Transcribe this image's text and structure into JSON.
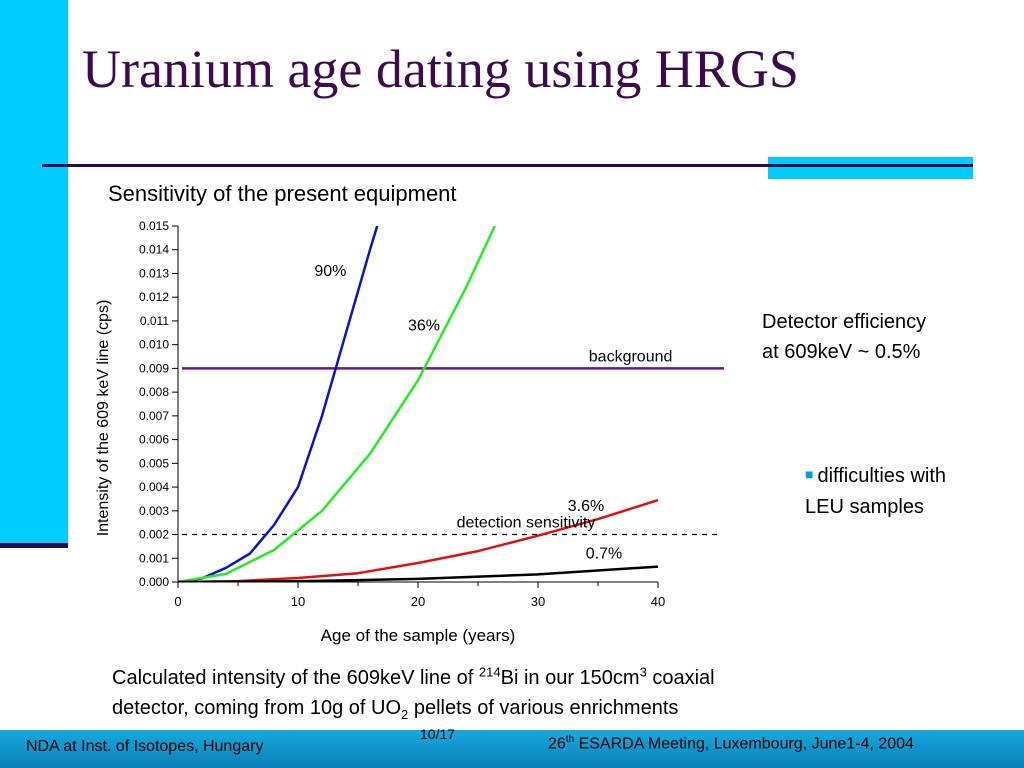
{
  "slide": {
    "title": "Uranium age dating using HRGS",
    "subtitle": "Sensitivity of the present equipment",
    "detector_note_line1": "Detector efficiency",
    "detector_note_line2": "at 609keV ~ 0.5%",
    "difficulties_line1": "difficulties with",
    "difficulties_line2": "LEU samples",
    "caption": {
      "part1": "Calculated intensity of the 609keV line of ",
      "sup1": "214",
      "part2": "Bi in our 150cm",
      "sup2": "3",
      "part3": " coaxial",
      "line2a": "detector, coming from 10g of UO",
      "sub1": "2",
      "line2b": " pellets of various enrichments"
    },
    "footer_left": "NDA at Inst. of Isotopes, Hungary",
    "footer_right_num": "26",
    "footer_right_sup": "th",
    "footer_right_rest": " ESARDA Meeting, Luxembourg, June1-4, 2004",
    "page_number": "10/17",
    "colors": {
      "accent": "#00ccff",
      "title": "#3d0a4d",
      "rule": "#2d0a4a"
    }
  },
  "chart_data": {
    "type": "line",
    "xlabel": "Age of the sample (years)",
    "ylabel": "Intensity of the 609 keV line (cps)",
    "xlim": [
      0,
      40
    ],
    "ylim": [
      0,
      0.015
    ],
    "x_ticks": [
      "0",
      "10",
      "20",
      "30",
      "40"
    ],
    "y_ticks": [
      "0.000",
      "0.001",
      "0.002",
      "0.003",
      "0.004",
      "0.005",
      "0.006",
      "0.007",
      "0.008",
      "0.009",
      "0.010",
      "0.011",
      "0.012",
      "0.013",
      "0.014",
      "0.015"
    ],
    "series": [
      {
        "name": "90%",
        "color": "#0a14c8",
        "x": [
          0,
          2,
          4,
          6,
          8,
          10,
          12,
          14,
          16,
          16.6
        ],
        "y": [
          0,
          0.00015,
          0.0006,
          0.0012,
          0.0024,
          0.004,
          0.007,
          0.0105,
          0.014,
          0.015
        ]
      },
      {
        "name": "36%",
        "color": "#22ee22",
        "x": [
          0,
          4,
          8,
          12,
          16,
          20,
          24,
          26.4
        ],
        "y": [
          0,
          0.00034,
          0.00135,
          0.003,
          0.0054,
          0.0085,
          0.0124,
          0.015
        ]
      },
      {
        "name": "3.6%",
        "color": "#dd1111",
        "x": [
          0,
          5,
          10,
          15,
          20,
          25,
          30,
          35,
          40
        ],
        "y": [
          0,
          4e-05,
          0.00017,
          0.00037,
          0.0008,
          0.0013,
          0.00195,
          0.00265,
          0.00345
        ]
      },
      {
        "name": "0.7%",
        "color": "#000000",
        "x": [
          0,
          10,
          20,
          30,
          40
        ],
        "y": [
          0,
          3e-05,
          0.00013,
          0.00032,
          0.00065
        ]
      }
    ],
    "reference_lines": [
      {
        "name": "background",
        "y": 0.009,
        "color": "#6a1a80",
        "style": "solid"
      },
      {
        "name": "detection sensitivity",
        "y": 0.002,
        "color": "#000000",
        "style": "dashed"
      }
    ],
    "annotations": [
      {
        "text": "90%",
        "x": 12.7,
        "y": 0.0129
      },
      {
        "text": "36%",
        "x": 20.5,
        "y": 0.0106
      },
      {
        "text": "3.6%",
        "x": 34.0,
        "y": 0.003
      },
      {
        "text": "0.7%",
        "x": 35.5,
        "y": 0.001
      },
      {
        "text": "background",
        "x": 41.2,
        "y": 0.0093
      },
      {
        "text": "detection sensitivity",
        "x": 29.0,
        "y": 0.0023
      }
    ]
  }
}
